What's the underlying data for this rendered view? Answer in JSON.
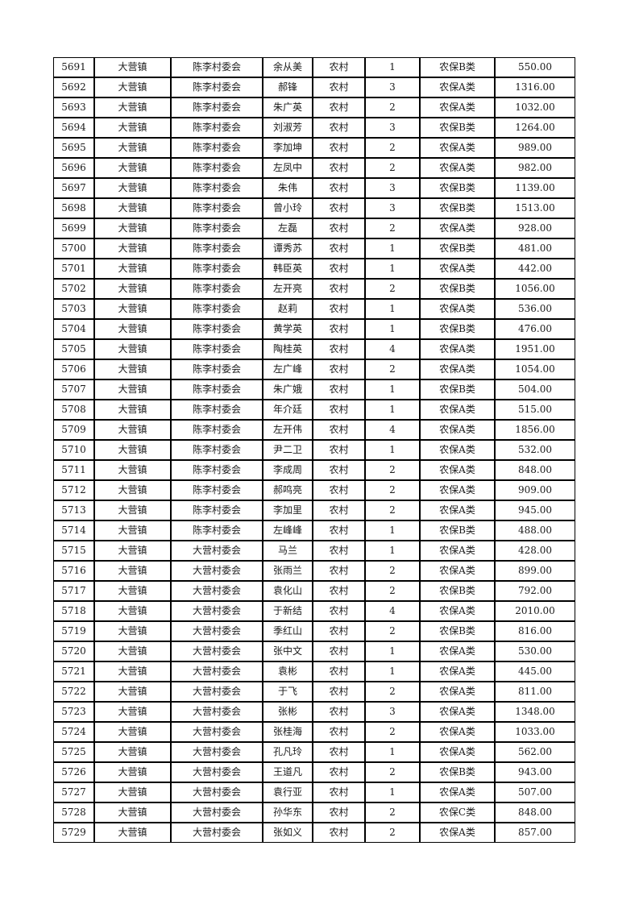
{
  "page": {
    "background_color": "#ffffff",
    "text_color": "#1a1a1a",
    "grid_color": "#000000"
  },
  "table": {
    "column_keys": [
      "id",
      "town",
      "village",
      "name",
      "residence",
      "count",
      "category",
      "amount"
    ],
    "rows": [
      [
        "5691",
        "大营镇",
        "陈李村委会",
        "余从美",
        "农村",
        "1",
        "农保B类",
        "550.00"
      ],
      [
        "5692",
        "大营镇",
        "陈李村委会",
        "郝锋",
        "农村",
        "3",
        "农保A类",
        "1316.00"
      ],
      [
        "5693",
        "大营镇",
        "陈李村委会",
        "朱广英",
        "农村",
        "2",
        "农保A类",
        "1032.00"
      ],
      [
        "5694",
        "大营镇",
        "陈李村委会",
        "刘淑芳",
        "农村",
        "3",
        "农保B类",
        "1264.00"
      ],
      [
        "5695",
        "大营镇",
        "陈李村委会",
        "李加坤",
        "农村",
        "2",
        "农保A类",
        "989.00"
      ],
      [
        "5696",
        "大营镇",
        "陈李村委会",
        "左凤中",
        "农村",
        "2",
        "农保A类",
        "982.00"
      ],
      [
        "5697",
        "大营镇",
        "陈李村委会",
        "朱伟",
        "农村",
        "3",
        "农保B类",
        "1139.00"
      ],
      [
        "5698",
        "大营镇",
        "陈李村委会",
        "曾小玲",
        "农村",
        "3",
        "农保B类",
        "1513.00"
      ],
      [
        "5699",
        "大营镇",
        "陈李村委会",
        "左磊",
        "农村",
        "2",
        "农保A类",
        "928.00"
      ],
      [
        "5700",
        "大营镇",
        "陈李村委会",
        "谭秀苏",
        "农村",
        "1",
        "农保B类",
        "481.00"
      ],
      [
        "5701",
        "大营镇",
        "陈李村委会",
        "韩臣英",
        "农村",
        "1",
        "农保A类",
        "442.00"
      ],
      [
        "5702",
        "大营镇",
        "陈李村委会",
        "左开亮",
        "农村",
        "2",
        "农保B类",
        "1056.00"
      ],
      [
        "5703",
        "大营镇",
        "陈李村委会",
        "赵莉",
        "农村",
        "1",
        "农保A类",
        "536.00"
      ],
      [
        "5704",
        "大营镇",
        "陈李村委会",
        "黄学英",
        "农村",
        "1",
        "农保B类",
        "476.00"
      ],
      [
        "5705",
        "大营镇",
        "陈李村委会",
        "陶桂英",
        "农村",
        "4",
        "农保A类",
        "1951.00"
      ],
      [
        "5706",
        "大营镇",
        "陈李村委会",
        "左广峰",
        "农村",
        "2",
        "农保A类",
        "1054.00"
      ],
      [
        "5707",
        "大营镇",
        "陈李村委会",
        "朱广娥",
        "农村",
        "1",
        "农保B类",
        "504.00"
      ],
      [
        "5708",
        "大营镇",
        "陈李村委会",
        "年介廷",
        "农村",
        "1",
        "农保A类",
        "515.00"
      ],
      [
        "5709",
        "大营镇",
        "陈李村委会",
        "左开伟",
        "农村",
        "4",
        "农保A类",
        "1856.00"
      ],
      [
        "5710",
        "大营镇",
        "陈李村委会",
        "尹二卫",
        "农村",
        "1",
        "农保A类",
        "532.00"
      ],
      [
        "5711",
        "大营镇",
        "陈李村委会",
        "李成周",
        "农村",
        "2",
        "农保A类",
        "848.00"
      ],
      [
        "5712",
        "大营镇",
        "陈李村委会",
        "郝鸣亮",
        "农村",
        "2",
        "农保A类",
        "909.00"
      ],
      [
        "5713",
        "大营镇",
        "陈李村委会",
        "李加里",
        "农村",
        "2",
        "农保A类",
        "945.00"
      ],
      [
        "5714",
        "大营镇",
        "陈李村委会",
        "左峰峰",
        "农村",
        "1",
        "农保B类",
        "488.00"
      ],
      [
        "5715",
        "大营镇",
        "大营村委会",
        "马兰",
        "农村",
        "1",
        "农保A类",
        "428.00"
      ],
      [
        "5716",
        "大营镇",
        "大营村委会",
        "张雨兰",
        "农村",
        "2",
        "农保A类",
        "899.00"
      ],
      [
        "5717",
        "大营镇",
        "大营村委会",
        "袁化山",
        "农村",
        "2",
        "农保B类",
        "792.00"
      ],
      [
        "5718",
        "大营镇",
        "大营村委会",
        "于新结",
        "农村",
        "4",
        "农保A类",
        "2010.00"
      ],
      [
        "5719",
        "大营镇",
        "大营村委会",
        "季红山",
        "农村",
        "2",
        "农保B类",
        "816.00"
      ],
      [
        "5720",
        "大营镇",
        "大营村委会",
        "张中文",
        "农村",
        "1",
        "农保A类",
        "530.00"
      ],
      [
        "5721",
        "大营镇",
        "大营村委会",
        "袁彬",
        "农村",
        "1",
        "农保A类",
        "445.00"
      ],
      [
        "5722",
        "大营镇",
        "大营村委会",
        "于飞",
        "农村",
        "2",
        "农保A类",
        "811.00"
      ],
      [
        "5723",
        "大营镇",
        "大营村委会",
        "张彬",
        "农村",
        "3",
        "农保A类",
        "1348.00"
      ],
      [
        "5724",
        "大营镇",
        "大营村委会",
        "张桂海",
        "农村",
        "2",
        "农保A类",
        "1033.00"
      ],
      [
        "5725",
        "大营镇",
        "大营村委会",
        "孔凡玲",
        "农村",
        "1",
        "农保A类",
        "562.00"
      ],
      [
        "5726",
        "大营镇",
        "大营村委会",
        "王道凡",
        "农村",
        "2",
        "农保B类",
        "943.00"
      ],
      [
        "5727",
        "大营镇",
        "大营村委会",
        "袁行亚",
        "农村",
        "1",
        "农保A类",
        "507.00"
      ],
      [
        "5728",
        "大营镇",
        "大营村委会",
        "孙华东",
        "农村",
        "2",
        "农保C类",
        "848.00"
      ],
      [
        "5729",
        "大营镇",
        "大营村委会",
        "张如义",
        "农村",
        "2",
        "农保A类",
        "857.00"
      ]
    ]
  }
}
